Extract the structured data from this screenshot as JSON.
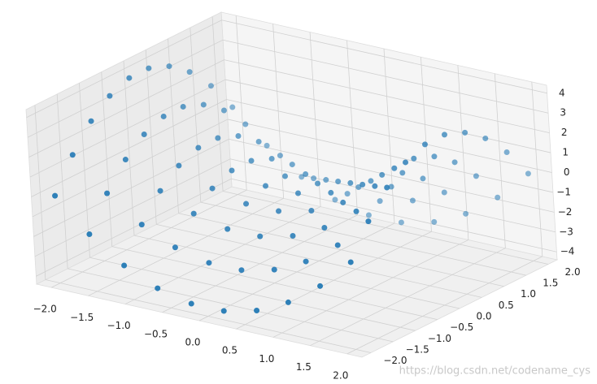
{
  "chart_data": {
    "type": "scatter3d",
    "color": "#1f77b4",
    "grid": true,
    "xlim": [
      -2.2,
      2.2
    ],
    "ylim": [
      -2.2,
      2.2
    ],
    "zlim": [
      -4.4,
      4.4
    ],
    "xticks": [
      {
        "value": -2,
        "label": "−2.0"
      },
      {
        "value": -1.5,
        "label": "−1.5"
      },
      {
        "value": -1,
        "label": "−1.0"
      },
      {
        "value": -0.5,
        "label": "−0.5"
      },
      {
        "value": 0,
        "label": "0.0"
      },
      {
        "value": 0.5,
        "label": "0.5"
      },
      {
        "value": 1,
        "label": "1.0"
      },
      {
        "value": 1.5,
        "label": "1.5"
      },
      {
        "value": 2,
        "label": "2.0"
      }
    ],
    "yticks": [
      {
        "value": -2,
        "label": "−2.0"
      },
      {
        "value": -1.5,
        "label": "−1.5"
      },
      {
        "value": -1,
        "label": "−1.0"
      },
      {
        "value": -0.5,
        "label": "−0.5"
      },
      {
        "value": 0,
        "label": "0.0"
      },
      {
        "value": 0.5,
        "label": "0.5"
      },
      {
        "value": 1,
        "label": "1.0"
      },
      {
        "value": 1.5,
        "label": "1.5"
      },
      {
        "value": 2,
        "label": "2.0"
      }
    ],
    "zticks": [
      {
        "value": -4,
        "label": "−4"
      },
      {
        "value": -3,
        "label": "−3"
      },
      {
        "value": -2,
        "label": "−2"
      },
      {
        "value": -1,
        "label": "−1"
      },
      0,
      1,
      2,
      3,
      4
    ],
    "x": [
      -2,
      -2,
      -2,
      -2,
      -2,
      -2,
      -2,
      -2,
      -2,
      -2,
      -1.56,
      -1.56,
      -1.56,
      -1.56,
      -1.56,
      -1.56,
      -1.56,
      -1.56,
      -1.56,
      -1.56,
      -1.11,
      -1.11,
      -1.11,
      -1.11,
      -1.11,
      -1.11,
      -1.11,
      -1.11,
      -1.11,
      -1.11,
      -0.67,
      -0.67,
      -0.67,
      -0.67,
      -0.67,
      -0.67,
      -0.67,
      -0.67,
      -0.67,
      -0.67,
      -0.22,
      -0.22,
      -0.22,
      -0.22,
      -0.22,
      -0.22,
      -0.22,
      -0.22,
      -0.22,
      -0.22,
      0.22,
      0.22,
      0.22,
      0.22,
      0.22,
      0.22,
      0.22,
      0.22,
      0.22,
      0.22,
      0.67,
      0.67,
      0.67,
      0.67,
      0.67,
      0.67,
      0.67,
      0.67,
      0.67,
      0.67,
      1.11,
      1.11,
      1.11,
      1.11,
      1.11,
      1.11,
      1.11,
      1.11,
      1.11,
      1.11,
      1.56,
      1.56,
      1.56,
      1.56,
      1.56,
      1.56,
      1.56,
      1.56,
      1.56,
      1.56,
      2,
      2,
      2,
      2,
      2,
      2,
      2,
      2,
      2,
      2
    ],
    "y": [
      -2,
      -1.56,
      -1.11,
      -0.67,
      -0.22,
      0.22,
      0.67,
      1.11,
      1.56,
      2,
      -2,
      -1.56,
      -1.11,
      -0.67,
      -0.22,
      0.22,
      0.67,
      1.11,
      1.56,
      2,
      -2,
      -1.56,
      -1.11,
      -0.67,
      -0.22,
      0.22,
      0.67,
      1.11,
      1.56,
      2,
      -2,
      -1.56,
      -1.11,
      -0.67,
      -0.22,
      0.22,
      0.67,
      1.11,
      1.56,
      2,
      -2,
      -1.56,
      -1.11,
      -0.67,
      -0.22,
      0.22,
      0.67,
      1.11,
      1.56,
      2,
      -2,
      -1.56,
      -1.11,
      -0.67,
      -0.22,
      0.22,
      0.67,
      1.11,
      1.56,
      2,
      -2,
      -1.56,
      -1.11,
      -0.67,
      -0.22,
      0.22,
      0.67,
      1.11,
      1.56,
      2,
      -2,
      -1.56,
      -1.11,
      -0.67,
      -0.22,
      0.22,
      0.67,
      1.11,
      1.56,
      2,
      -2,
      -1.56,
      -1.11,
      -0.67,
      -0.22,
      0.22,
      0.67,
      1.11,
      1.56,
      2,
      -2,
      -1.56,
      -1.11,
      -0.67,
      -0.22,
      0.22,
      0.67,
      1.11,
      1.56,
      2
    ],
    "z": [
      0,
      1.57,
      2.77,
      3.55,
      3.95,
      3.95,
      3.55,
      2.77,
      1.57,
      0,
      -1.57,
      0,
      1.2,
      1.98,
      2.38,
      2.38,
      1.98,
      1.2,
      0,
      -1.57,
      -2.77,
      -1.2,
      0,
      0.78,
      1.18,
      1.18,
      0.78,
      0,
      -1.2,
      -2.77,
      -3.55,
      -1.98,
      -0.78,
      0,
      0.4,
      0.4,
      0,
      -0.78,
      -1.98,
      -3.55,
      -3.95,
      -2.38,
      -1.18,
      -0.4,
      0,
      0,
      -0.4,
      -1.18,
      -2.38,
      -3.95,
      -3.95,
      -2.38,
      -1.18,
      -0.4,
      0,
      0,
      -0.4,
      -1.18,
      -2.38,
      -3.95,
      -3.55,
      -1.98,
      -0.78,
      0,
      0.4,
      0.4,
      0,
      -0.78,
      -1.98,
      -3.55,
      -2.77,
      -1.2,
      0,
      0.78,
      1.18,
      1.18,
      0.78,
      0,
      -1.2,
      -2.77,
      -1.57,
      0,
      1.2,
      1.98,
      2.38,
      2.38,
      1.98,
      1.2,
      0,
      -1.57,
      0,
      1.57,
      2.77,
      3.55,
      3.95,
      3.95,
      3.55,
      2.77,
      1.57,
      0
    ]
  },
  "watermark": "https://blog.csdn.net/codename_cys"
}
